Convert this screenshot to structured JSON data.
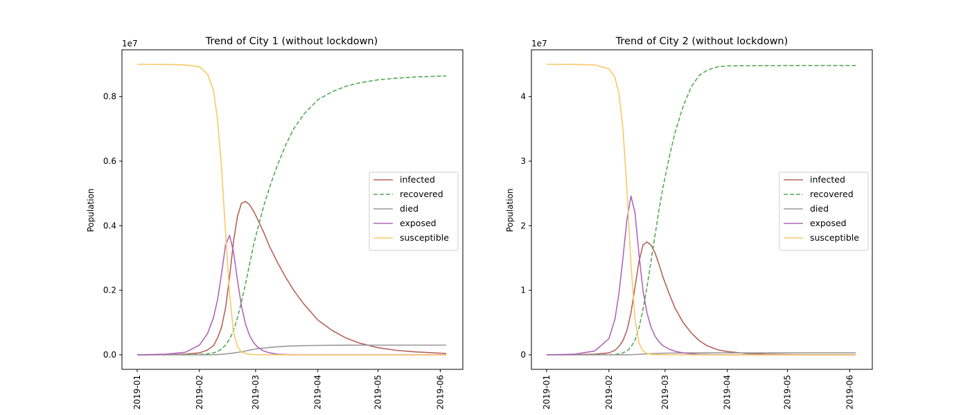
{
  "chart_data": [
    {
      "type": "line",
      "title": "Trend of City 1 (without lockdown)",
      "ylabel": "Population",
      "xlabel": "",
      "y_offset_label": "1e7",
      "x_ticks": [
        "2019-01",
        "2019-02",
        "2019-03",
        "2019-04",
        "2019-05",
        "2019-06"
      ],
      "x_range": [
        "2019-01-01",
        "2019-06-05"
      ],
      "ylim": [
        0,
        9000000
      ],
      "y_tick_labels": [
        "0.0",
        "0.2",
        "0.4",
        "0.6",
        "0.8"
      ],
      "y_tick_values": [
        0,
        2000000,
        4000000,
        6000000,
        8000000
      ],
      "legend_position": "center-right",
      "x": [
        "2019-01-01",
        "2019-01-15",
        "2019-01-25",
        "2019-02-01",
        "2019-02-05",
        "2019-02-08",
        "2019-02-10",
        "2019-02-12",
        "2019-02-14",
        "2019-02-16",
        "2019-02-18",
        "2019-02-20",
        "2019-02-22",
        "2019-02-24",
        "2019-02-26",
        "2019-02-28",
        "2019-03-02",
        "2019-03-05",
        "2019-03-08",
        "2019-03-12",
        "2019-03-16",
        "2019-03-20",
        "2019-03-25",
        "2019-04-01",
        "2019-04-08",
        "2019-04-15",
        "2019-04-22",
        "2019-05-01",
        "2019-05-10",
        "2019-05-20",
        "2019-06-04"
      ],
      "series": [
        {
          "name": "infected",
          "color": "#b5615b",
          "dash": "solid",
          "values": [
            0,
            5000,
            20000,
            60000,
            150000,
            280000,
            520000,
            850000,
            1450000,
            2400000,
            3500000,
            4300000,
            4700000,
            4750000,
            4650000,
            4450000,
            4200000,
            3800000,
            3350000,
            2850000,
            2400000,
            2000000,
            1580000,
            1080000,
            760000,
            520000,
            360000,
            220000,
            140000,
            90000,
            40000
          ]
        },
        {
          "name": "recovered",
          "color": "#55a855",
          "dash": "dashed",
          "values": [
            0,
            0,
            2000,
            10000,
            30000,
            60000,
            100000,
            180000,
            300000,
            480000,
            750000,
            1150000,
            1650000,
            2200000,
            2800000,
            3400000,
            3900000,
            4600000,
            5200000,
            5900000,
            6500000,
            7000000,
            7450000,
            7900000,
            8150000,
            8320000,
            8430000,
            8520000,
            8570000,
            8610000,
            8640000
          ]
        },
        {
          "name": "died",
          "color": "#999999",
          "dash": "solid",
          "values": [
            0,
            0,
            0,
            1000,
            2000,
            4000,
            8000,
            15000,
            25000,
            40000,
            55000,
            75000,
            95000,
            120000,
            145000,
            170000,
            190000,
            210000,
            230000,
            250000,
            265000,
            275000,
            285000,
            292000,
            296000,
            298000,
            299000,
            300000,
            300000,
            300000,
            300000
          ]
        },
        {
          "name": "exposed",
          "color": "#b065b8",
          "dash": "solid",
          "values": [
            0,
            20000,
            80000,
            300000,
            650000,
            1150000,
            1700000,
            2500000,
            3400000,
            3700000,
            3200000,
            2300000,
            1500000,
            950000,
            600000,
            380000,
            240000,
            120000,
            60000,
            20000,
            8000,
            3000,
            1000,
            0,
            0,
            0,
            0,
            0,
            0,
            0,
            0
          ]
        },
        {
          "name": "susceptible",
          "color": "#f8c866",
          "dash": "solid",
          "values": [
            9000000,
            8995000,
            8980000,
            8930000,
            8700000,
            8200000,
            7300000,
            5800000,
            3800000,
            1900000,
            700000,
            250000,
            90000,
            40000,
            20000,
            10000,
            6000,
            4000,
            3000,
            2000,
            1500,
            1000,
            800,
            500,
            400,
            300,
            200,
            100,
            100,
            100,
            100
          ]
        }
      ]
    },
    {
      "type": "line",
      "title": "Trend of City 2 (without lockdown)",
      "ylabel": "Population",
      "xlabel": "",
      "y_offset_label": "1e7",
      "x_ticks": [
        "2019-01",
        "2019-02",
        "2019-03",
        "2019-04",
        "2019-05",
        "2019-06"
      ],
      "x_range": [
        "2019-01-01",
        "2019-06-05"
      ],
      "ylim": [
        0,
        45000000
      ],
      "y_tick_labels": [
        "0",
        "1",
        "2",
        "3",
        "4"
      ],
      "y_tick_values": [
        0,
        10000000,
        20000000,
        30000000,
        40000000
      ],
      "legend_position": "center-right",
      "x": [
        "2019-01-01",
        "2019-01-15",
        "2019-01-25",
        "2019-02-01",
        "2019-02-04",
        "2019-02-06",
        "2019-02-08",
        "2019-02-10",
        "2019-02-12",
        "2019-02-14",
        "2019-02-16",
        "2019-02-18",
        "2019-02-20",
        "2019-02-22",
        "2019-02-24",
        "2019-02-26",
        "2019-02-28",
        "2019-03-03",
        "2019-03-06",
        "2019-03-10",
        "2019-03-14",
        "2019-03-18",
        "2019-03-22",
        "2019-03-27",
        "2019-04-01",
        "2019-04-10",
        "2019-04-20",
        "2019-05-01",
        "2019-05-15",
        "2019-06-04"
      ],
      "series": [
        {
          "name": "infected",
          "color": "#b5615b",
          "dash": "solid",
          "values": [
            0,
            20000,
            100000,
            300000,
            700000,
            1300000,
            2200000,
            3800000,
            6500000,
            10500000,
            14500000,
            17000000,
            17500000,
            17000000,
            15800000,
            14000000,
            12000000,
            9500000,
            7200000,
            5000000,
            3400000,
            2200000,
            1400000,
            800000,
            500000,
            220000,
            100000,
            40000,
            15000,
            5000
          ]
        },
        {
          "name": "recovered",
          "color": "#55a855",
          "dash": "dashed",
          "values": [
            0,
            0,
            0,
            20000,
            60000,
            150000,
            300000,
            600000,
            1200000,
            2300000,
            4200000,
            7000000,
            10500000,
            14500000,
            18500000,
            22500000,
            26000000,
            30500000,
            34500000,
            38500000,
            41500000,
            43300000,
            44100000,
            44600000,
            44750000,
            44800000,
            44810000,
            44820000,
            44820000,
            44820000
          ]
        },
        {
          "name": "died",
          "color": "#999999",
          "dash": "solid",
          "values": [
            0,
            0,
            0,
            0,
            1000,
            3000,
            6000,
            12000,
            25000,
            50000,
            80000,
            110000,
            140000,
            170000,
            200000,
            225000,
            245000,
            265000,
            280000,
            290000,
            295000,
            298000,
            300000,
            300000,
            300000,
            300000,
            300000,
            300000,
            300000,
            300000
          ]
        },
        {
          "name": "exposed",
          "color": "#b065b8",
          "dash": "solid",
          "values": [
            0,
            100000,
            600000,
            2500000,
            5500000,
            9500000,
            15000000,
            21000000,
            24600000,
            22000000,
            15500000,
            10000000,
            6500000,
            4300000,
            2900000,
            2000000,
            1400000,
            900000,
            550000,
            300000,
            150000,
            80000,
            40000,
            15000,
            5000,
            1000,
            0,
            0,
            0,
            0
          ]
        },
        {
          "name": "susceptible",
          "color": "#f8c866",
          "dash": "solid",
          "values": [
            45000000,
            44980000,
            44900000,
            44300000,
            43000000,
            40500000,
            35000000,
            25500000,
            14000000,
            5500000,
            1800000,
            600000,
            200000,
            80000,
            40000,
            20000,
            10000,
            5000,
            3000,
            2000,
            1500,
            1000,
            800,
            600,
            500,
            300,
            200,
            100,
            100,
            100
          ]
        }
      ]
    }
  ]
}
